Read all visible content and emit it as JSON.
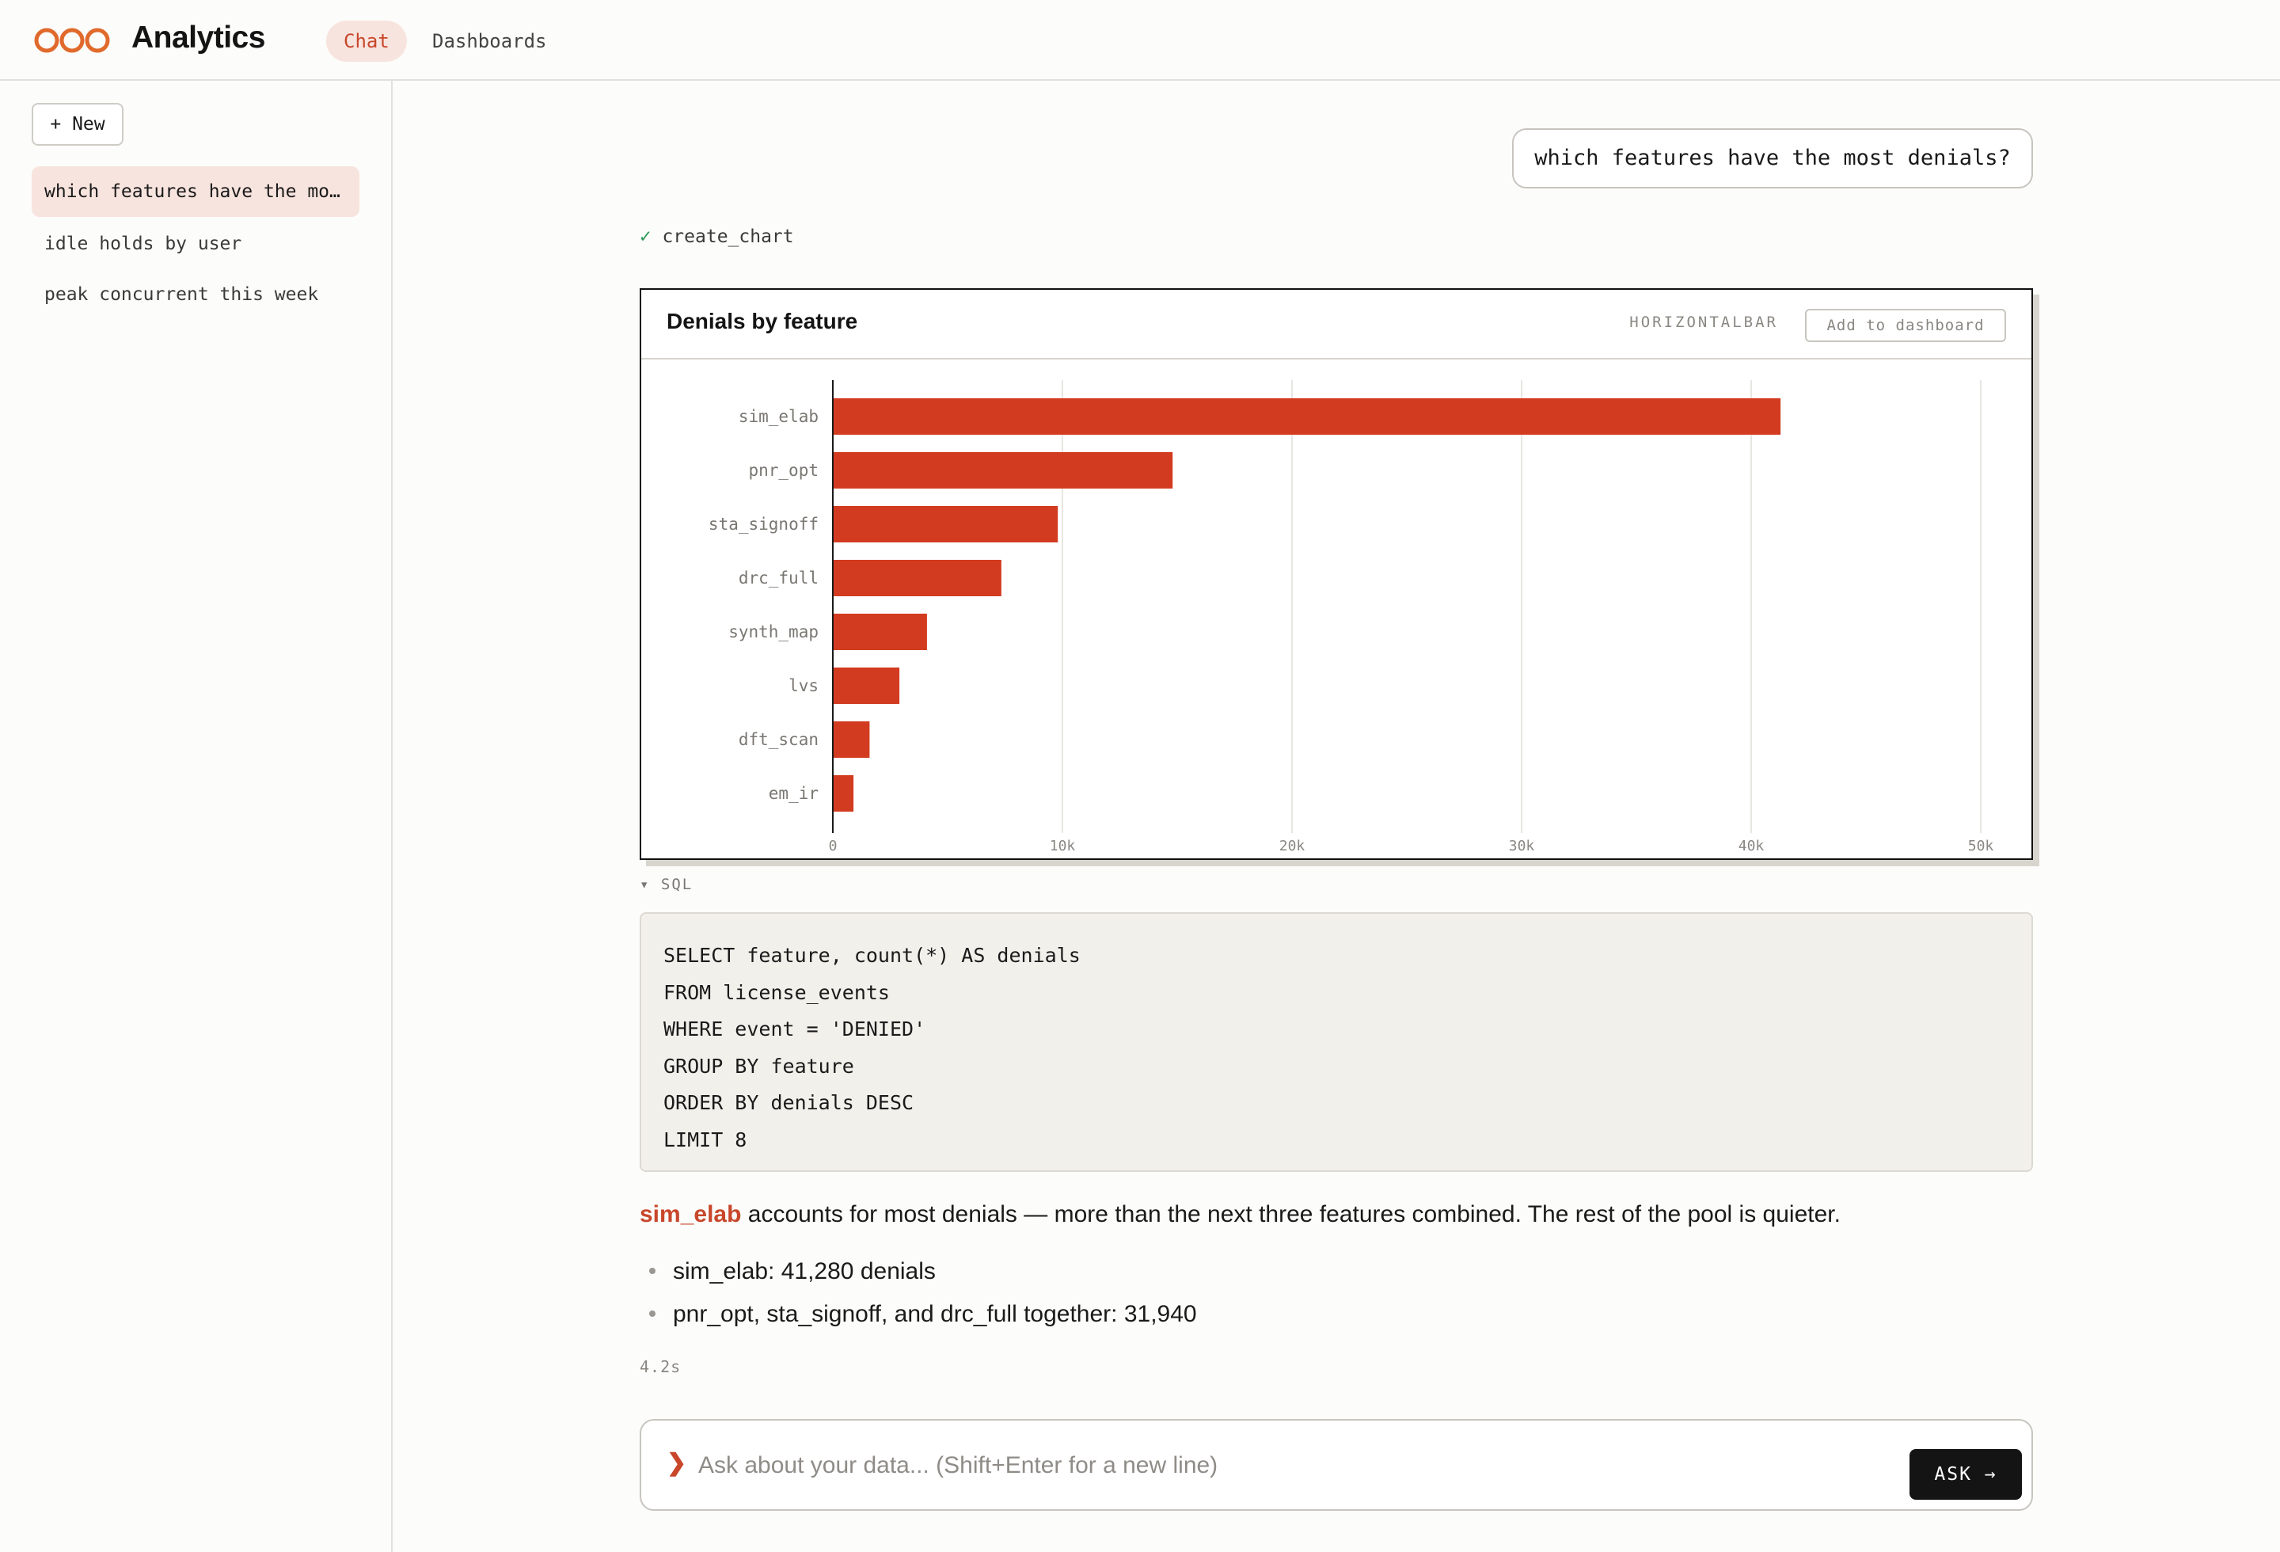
{
  "app": {
    "title": "Analytics",
    "brand_color": "#e06a2c",
    "accent_color": "#c8472b"
  },
  "nav": {
    "tabs": [
      {
        "label": "Chat",
        "active": true
      },
      {
        "label": "Dashboards",
        "active": false
      }
    ]
  },
  "sidebar": {
    "new_label": "+ New",
    "conversations": [
      {
        "label": "which features have the most denials?",
        "active": true
      },
      {
        "label": "idle holds by user",
        "active": false
      },
      {
        "label": "peak concurrent this week",
        "active": false
      }
    ]
  },
  "chat": {
    "user_message": "which features have the most denials?",
    "tool_call": "create_chart",
    "tool_status_icon": "check-icon"
  },
  "chart_card": {
    "title": "Denials by feature",
    "type_label": "HORIZONTALBAR",
    "add_label": "Add to dashboard"
  },
  "chart_data": {
    "type": "bar",
    "orientation": "horizontal",
    "title": "Denials by feature",
    "categories": [
      "sim_elab",
      "pnr_opt",
      "sta_signoff",
      "drc_full",
      "synth_map",
      "lvs",
      "dft_scan",
      "em_ir"
    ],
    "values": [
      41280,
      14800,
      9800,
      7340,
      4100,
      2900,
      1600,
      900
    ],
    "xlim": [
      0,
      50000
    ],
    "x_ticks": [
      0,
      10000,
      20000,
      30000,
      40000,
      50000
    ],
    "x_tick_labels": [
      "0",
      "10k",
      "20k",
      "30k",
      "40k",
      "50k"
    ],
    "bar_color": "#d23b20",
    "grid": true
  },
  "sql": {
    "toggle_label": "▾ SQL",
    "lines": [
      "SELECT feature, count(*) AS denials",
      "FROM license_events",
      "WHERE event = 'DENIED'",
      "GROUP BY feature",
      "ORDER BY denials DESC",
      "LIMIT 8"
    ]
  },
  "answer": {
    "highlight": "sim_elab",
    "lead_rest": " accounts for most denials — more than the next three features combined. The rest of the pool is quieter.",
    "bullets": [
      "sim_elab: 41,280 denials",
      "pnr_opt, sta_signoff, and drc_full together: 31,940"
    ],
    "timing": "4.2s"
  },
  "input": {
    "placeholder": "Ask about your data... (Shift+Enter for a new line)",
    "value": "",
    "prompt_glyph": "❯",
    "ask_label": "ASK →"
  }
}
